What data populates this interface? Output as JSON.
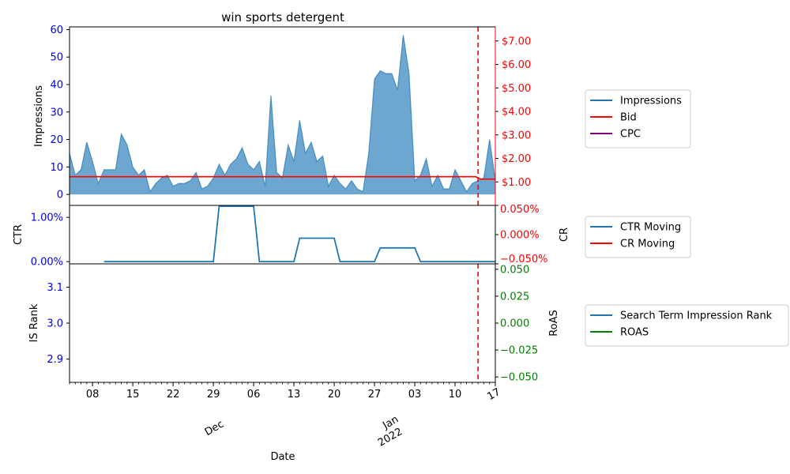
{
  "chart_data": {
    "type": "area",
    "title": "win sports detergent",
    "x_axis": {
      "label": "Date",
      "range": [
        "2021-11-04",
        "2022-01-17"
      ],
      "tick_days": [
        "08",
        "15",
        "22",
        "29",
        "06",
        "13",
        "20",
        "27",
        "03",
        "10",
        "17"
      ],
      "month_labels": [
        "Dec",
        "Jan\n2022"
      ]
    },
    "panels": [
      {
        "name": "impressions-panel",
        "left_axis": {
          "label": "Impressions",
          "range": [
            -4,
            61
          ],
          "ticks": [
            "0",
            "10",
            "20",
            "30",
            "40",
            "50",
            "60"
          ],
          "color": "#0000ff"
        },
        "right_axis": {
          "label": "",
          "range": [
            0,
            7.6
          ],
          "ticks": [
            "$1.00",
            "$2.00",
            "$3.00",
            "$4.00",
            "$5.00",
            "$6.00",
            "$7.00"
          ],
          "color": "#ff0000"
        },
        "series": [
          {
            "name": "Impressions",
            "type": "area",
            "color": "#1f77b4",
            "x": [
              "2021-11-04",
              "2021-11-05",
              "2021-11-06",
              "2021-11-07",
              "2021-11-08",
              "2021-11-09",
              "2021-11-10",
              "2021-11-11",
              "2021-11-12",
              "2021-11-13",
              "2021-11-14",
              "2021-11-15",
              "2021-11-16",
              "2021-11-17",
              "2021-11-18",
              "2021-11-19",
              "2021-11-20",
              "2021-11-21",
              "2021-11-22",
              "2021-11-23",
              "2021-11-24",
              "2021-11-25",
              "2021-11-26",
              "2021-11-27",
              "2021-11-28",
              "2021-11-29",
              "2021-11-30",
              "2021-12-01",
              "2021-12-02",
              "2021-12-03",
              "2021-12-04",
              "2021-12-05",
              "2021-12-06",
              "2021-12-07",
              "2021-12-08",
              "2021-12-09",
              "2021-12-10",
              "2021-12-11",
              "2021-12-12",
              "2021-12-13",
              "2021-12-14",
              "2021-12-15",
              "2021-12-16",
              "2021-12-17",
              "2021-12-18",
              "2021-12-19",
              "2021-12-20",
              "2021-12-21",
              "2021-12-22",
              "2021-12-23",
              "2021-12-24",
              "2021-12-25",
              "2021-12-26",
              "2021-12-27",
              "2021-12-28",
              "2021-12-29",
              "2021-12-30",
              "2021-12-31",
              "2022-01-01",
              "2022-01-02",
              "2022-01-03",
              "2022-01-04",
              "2022-01-05",
              "2022-01-06",
              "2022-01-07",
              "2022-01-08",
              "2022-01-09",
              "2022-01-10",
              "2022-01-11",
              "2022-01-12",
              "2022-01-13",
              "2022-01-14",
              "2022-01-15",
              "2022-01-16",
              "2022-01-17"
            ],
            "values": [
              15,
              7,
              9,
              19,
              12,
              4,
              9,
              9,
              9,
              22,
              18,
              10,
              7,
              9,
              1,
              4,
              6,
              7,
              3,
              4,
              4,
              5,
              8,
              2,
              3,
              6,
              11,
              7,
              11,
              13,
              17,
              11,
              9,
              12,
              3,
              36,
              8,
              6,
              18,
              12,
              27,
              15,
              19,
              12,
              14,
              3,
              7,
              4,
              2,
              5,
              2,
              1,
              15,
              42,
              45,
              44,
              44,
              38,
              58,
              44,
              5,
              7,
              13,
              3,
              7,
              2,
              2,
              9,
              5,
              1,
              4,
              5,
              6,
              20,
              5
            ]
          },
          {
            "name": "Bid",
            "type": "line",
            "color": "#ff0000",
            "axis": "right",
            "value": 1.22,
            "end_value": 1.12
          },
          {
            "name": "CPC",
            "type": "line",
            "color": "#800080",
            "axis": "right",
            "values": []
          }
        ],
        "vline": {
          "date": "2022-01-14",
          "color": "#ff0000",
          "style": "dashed"
        }
      },
      {
        "name": "ctr-panel",
        "left_axis": {
          "label": "CTR",
          "range": [
            -0.0005,
            0.0127
          ],
          "ticks": [
            "0.00%",
            "1.00%"
          ],
          "color": "#0000ff"
        },
        "right_axis": {
          "label": "CR",
          "range": [
            -0.0005,
            0.0005
          ],
          "ticks": [
            "−0.050%",
            "0.000%",
            "0.050%"
          ],
          "color": "#ff0000"
        },
        "series": [
          {
            "name": "CTR Moving",
            "type": "line",
            "color": "#1f77b4",
            "segments": [
              [
                "2021-11-10",
                0.0
              ],
              [
                "2021-11-29",
                0.0
              ],
              [
                "2021-11-30",
                0.0125
              ],
              [
                "2021-12-06",
                0.0125
              ],
              [
                "2021-12-07",
                0.0
              ],
              [
                "2021-12-13",
                0.0
              ],
              [
                "2021-12-14",
                0.0053
              ],
              [
                "2021-12-20",
                0.0053
              ],
              [
                "2021-12-21",
                0.0
              ],
              [
                "2021-12-27",
                0.0
              ],
              [
                "2021-12-28",
                0.0031
              ],
              [
                "2022-01-03",
                0.0031
              ],
              [
                "2022-01-04",
                0.0
              ],
              [
                "2022-01-17",
                0.0
              ]
            ]
          },
          {
            "name": "CR Moving",
            "type": "line",
            "color": "#ff0000",
            "values": []
          }
        ]
      },
      {
        "name": "rank-panel",
        "left_axis": {
          "label": "IS Rank",
          "range": [
            2.835,
            3.165
          ],
          "ticks": [
            "2.9",
            "3.0",
            "3.1"
          ],
          "color": "#0000ff"
        },
        "right_axis": {
          "label": "RoAS",
          "range": [
            -0.055,
            0.055
          ],
          "ticks": [
            "−0.050",
            "−0.025",
            "0.000",
            "0.025",
            "0.050"
          ],
          "color": "#008000"
        },
        "series": [
          {
            "name": "Search Term Impression Rank",
            "type": "line",
            "color": "#1f77b4",
            "values": []
          },
          {
            "name": "ROAS",
            "type": "line",
            "color": "#008000",
            "values": []
          }
        ]
      }
    ],
    "legends": [
      {
        "placement": "right",
        "items": [
          {
            "label": "Impressions",
            "color": "#1f77b4"
          },
          {
            "label": "Bid",
            "color": "#ff0000"
          },
          {
            "label": "CPC",
            "color": "#800080"
          }
        ]
      },
      {
        "placement": "right",
        "items": [
          {
            "label": "CTR Moving",
            "color": "#1f77b4"
          },
          {
            "label": "CR Moving",
            "color": "#ff0000"
          }
        ]
      },
      {
        "placement": "right",
        "items": [
          {
            "label": "Search Term Impression Rank",
            "color": "#1f77b4"
          },
          {
            "label": "ROAS",
            "color": "#008000"
          }
        ]
      }
    ]
  }
}
